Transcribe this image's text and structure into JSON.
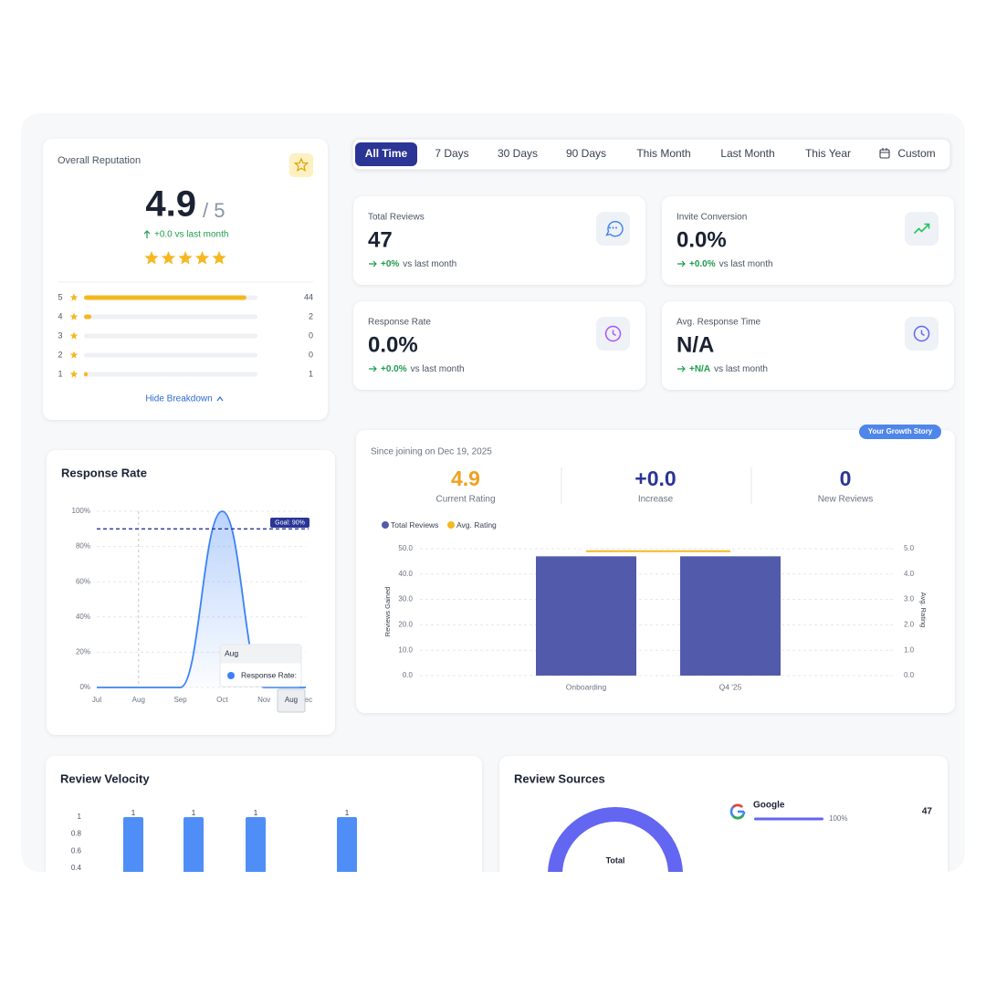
{
  "reputation": {
    "title": "Overall Reputation",
    "score": "4.9",
    "out_of": "/ 5",
    "change": "+0.0 vs last month",
    "breakdown": [
      {
        "stars": 5,
        "count": 44
      },
      {
        "stars": 4,
        "count": 2
      },
      {
        "stars": 3,
        "count": 0
      },
      {
        "stars": 2,
        "count": 0
      },
      {
        "stars": 1,
        "count": 1
      }
    ],
    "toggle": "Hide Breakdown"
  },
  "filters": [
    "All Time",
    "7 Days",
    "30 Days",
    "90 Days",
    "This Month",
    "Last Month",
    "This Year",
    "Custom"
  ],
  "kpis": [
    {
      "label": "Total Reviews",
      "value": "47",
      "change": "+0%",
      "suffix": "vs last month"
    },
    {
      "label": "Invite Conversion",
      "value": "0.0%",
      "change": "+0.0%",
      "suffix": "vs last month"
    },
    {
      "label": "Response Rate",
      "value": "0.0%",
      "change": "+0.0%",
      "suffix": "vs last month"
    },
    {
      "label": "Avg. Response Time",
      "value": "N/A",
      "change": "+N/A",
      "suffix": "vs last month"
    }
  ],
  "response_rate": {
    "title": "Response Rate",
    "chart": {
      "type": "line",
      "categories": [
        "Jul",
        "Aug",
        "Sep",
        "Oct",
        "Nov",
        "Dec"
      ],
      "series": [
        {
          "name": "Response Rate",
          "color": "#3b82f6",
          "values": [
            0,
            0,
            0,
            100,
            0,
            0
          ]
        }
      ],
      "ylim": [
        0,
        100
      ],
      "yticks": [
        {
          "value": 0,
          "label": "0%"
        },
        {
          "value": 20,
          "label": "20%"
        },
        {
          "value": 40,
          "label": "40%"
        },
        {
          "value": 60,
          "label": "60%"
        },
        {
          "value": 80,
          "label": "80%"
        },
        {
          "value": 100,
          "label": "100%"
        }
      ],
      "goal": {
        "value": 90,
        "label": "Goal: 90%"
      },
      "grid": true
    },
    "tooltip": {
      "title": "Aug",
      "label": "Response Rate:"
    },
    "cursor_label": "Aug"
  },
  "growth": {
    "badge": "Your Growth Story",
    "since": "Since joining on Dec 19, 2025",
    "stats": [
      {
        "value": "4.9",
        "label": "Current Rating"
      },
      {
        "value": "+0.0",
        "label": "Increase"
      },
      {
        "value": "0",
        "label": "New Reviews"
      }
    ],
    "chart": {
      "type": "bar",
      "categories": [
        "Onboarding",
        "Q4 '25"
      ],
      "series": [
        {
          "name": "Total Reviews",
          "color": "#525aab",
          "values": [
            47,
            47
          ]
        },
        {
          "name": "Avg. Rating",
          "color": "#f5b821",
          "values": [
            4.9,
            4.9
          ],
          "axis": "y2"
        }
      ],
      "ylim": [
        0,
        50
      ],
      "yticks": [
        {
          "value": 0,
          "label": "0.0"
        },
        {
          "value": 10,
          "label": "10.0"
        },
        {
          "value": 20,
          "label": "20.0"
        },
        {
          "value": 30,
          "label": "30.0"
        },
        {
          "value": 40,
          "label": "40.0"
        },
        {
          "value": 50,
          "label": "50.0"
        }
      ],
      "y2lim": [
        0,
        5
      ],
      "y2ticks": [
        {
          "value": 0,
          "label": "0.0"
        },
        {
          "value": 1,
          "label": "1.0"
        },
        {
          "value": 2,
          "label": "2.0"
        },
        {
          "value": 3,
          "label": "3.0"
        },
        {
          "value": 4,
          "label": "4.0"
        },
        {
          "value": 5,
          "label": "5.0"
        }
      ],
      "ylabel": "Reviews Gained",
      "y2label": "Avg. Rating",
      "grid": true
    }
  },
  "velocity": {
    "title": "Review Velocity",
    "chart": {
      "type": "bar",
      "values": [
        1,
        1,
        1,
        1
      ],
      "color": "#4f8ef7",
      "ylim": [
        0,
        1
      ],
      "yticks": [
        1,
        0.8,
        0.6,
        0.4
      ]
    }
  },
  "sources": {
    "title": "Review Sources",
    "center_label": "Total",
    "color": "#6366f1",
    "items": [
      {
        "name": "Google",
        "percent": 100,
        "percent_label": "100%",
        "count": "47"
      }
    ]
  }
}
